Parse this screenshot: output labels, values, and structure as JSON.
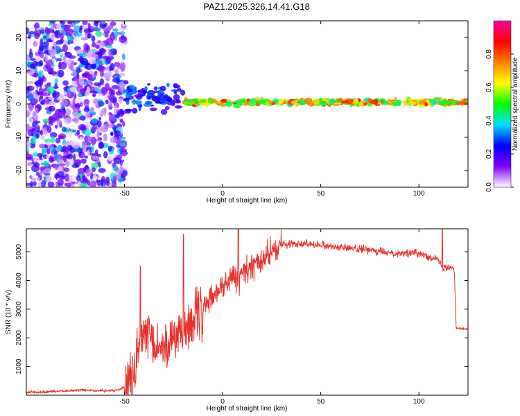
{
  "title": "PAZ1.2025.326.14.41.G18",
  "colors": {
    "snr_line": "#e8302a",
    "axis": "#000000",
    "background": "#ffffff"
  },
  "chart_data": [
    {
      "type": "heatmap",
      "name": "spectrogram",
      "xlabel": "Height of straight line (km)",
      "ylabel": "Frequency (Hz)",
      "xlim": [
        -100,
        125
      ],
      "ylim": [
        -25,
        25
      ],
      "xticks": [
        -50,
        0,
        50,
        100
      ],
      "yticks": [
        -20,
        -10,
        0,
        10,
        20
      ],
      "colorbar": {
        "label": "Normalized spectral amplitude",
        "range": [
          0,
          1
        ],
        "ticks": [
          "0.0",
          "0.2",
          "0.4",
          "0.6",
          "0.8"
        ],
        "tick_values": [
          0,
          0.2,
          0.4,
          0.6,
          0.8
        ],
        "stops": [
          "#ffffff",
          "#8000ff",
          "#0000ff",
          "#00e0ff",
          "#00ff00",
          "#ffff00",
          "#ff8000",
          "#ff0000",
          "#ff00a0"
        ]
      },
      "regions": [
        {
          "x_range": [
            -100,
            -50
          ],
          "freq_range": [
            -25,
            25
          ],
          "amplitude": 0.1,
          "description": "noise"
        },
        {
          "x_range": [
            -50,
            -20
          ],
          "freq_center": 2,
          "freq_spread": 6,
          "amplitude": 0.3
        },
        {
          "x_range": [
            -20,
            125
          ],
          "freq_center": 0.5,
          "freq_spread": 1,
          "amplitude": 0.8
        }
      ]
    },
    {
      "type": "line",
      "name": "snr",
      "xlabel": "Height of straight line (km)",
      "ylabel": "SNR (10 * v/v)",
      "xlim": [
        -100,
        125
      ],
      "ylim": [
        0,
        5800
      ],
      "xticks": [
        -50,
        0,
        50,
        100
      ],
      "yticks": [
        1000,
        2000,
        3000,
        4000,
        5000
      ],
      "series": [
        {
          "name": "SNR",
          "x": [
            -100,
            -90,
            -80,
            -70,
            -60,
            -52,
            -48,
            -45,
            -42,
            -40,
            -38,
            -35,
            -30,
            -25,
            -20,
            -15,
            -10,
            -5,
            0,
            5,
            8,
            10,
            15,
            20,
            25,
            30,
            40,
            50,
            60,
            70,
            80,
            90,
            100,
            105,
            110,
            112,
            115,
            118,
            119,
            125
          ],
          "y": [
            100,
            120,
            150,
            180,
            150,
            200,
            400,
            800,
            1700,
            2200,
            1900,
            1600,
            1700,
            2000,
            2300,
            2600,
            2900,
            3500,
            3800,
            4100,
            4000,
            4300,
            4500,
            4700,
            5000,
            5250,
            5300,
            5250,
            5150,
            5100,
            5000,
            4950,
            4950,
            4850,
            4700,
            4400,
            4500,
            4400,
            2350,
            2300
          ]
        }
      ],
      "annotations": [
        {
          "x": -42,
          "y": 4500,
          "label": "spike"
        },
        {
          "x": -20,
          "y": 5600,
          "label": "spike"
        },
        {
          "x": 8,
          "y": 5800,
          "label": "spike"
        },
        {
          "x": 112,
          "y": 5800,
          "label": "spike"
        }
      ]
    }
  ]
}
